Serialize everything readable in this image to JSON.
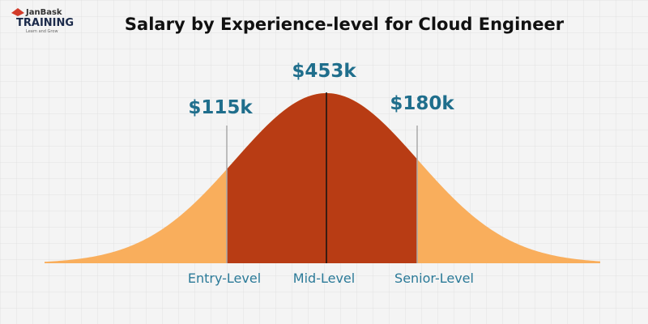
{
  "header": {
    "logo": {
      "brand": "JanBask",
      "name": "TRAINING",
      "tagline": "Learn and Grow"
    },
    "title": "Salary by Experience-level for Cloud Engineer"
  },
  "levels": [
    {
      "label": "Entry-Level",
      "salary": "$115k"
    },
    {
      "label": "Mid-Level",
      "salary": "$453k"
    },
    {
      "label": "Senior-Level",
      "salary": "$180k"
    }
  ]
}
